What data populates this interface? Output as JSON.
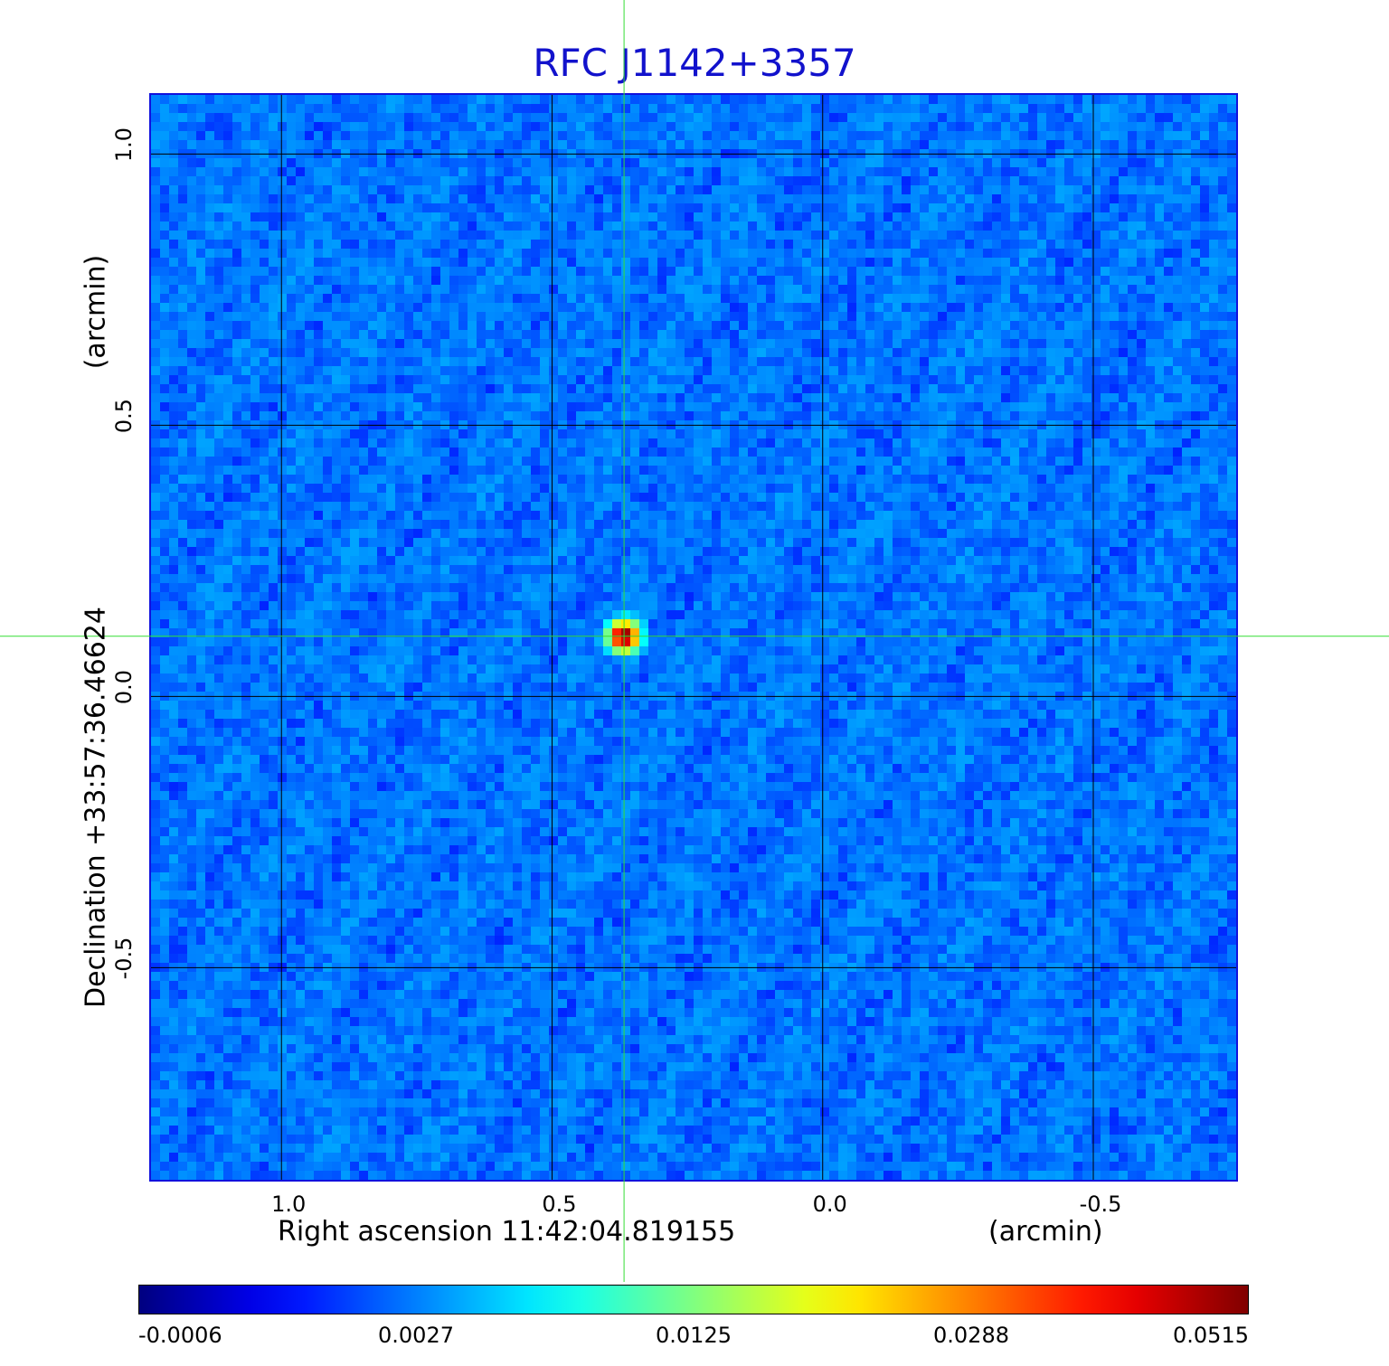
{
  "chart_data": {
    "type": "heatmap",
    "title": "RFC J1142+3357",
    "xlabel": "Right ascension  11:42:04.819155",
    "xlabel_unit": "(arcmin)",
    "ylabel": "Declination  +33:57:36.46624",
    "ylabel_unit": "(arcmin)",
    "x_axis_reversed": true,
    "xlim": [
      1.241,
      -0.764
    ],
    "ylim": [
      -0.891,
      1.109
    ],
    "x_ticks": [
      1.0,
      0.5,
      0.0,
      -0.5
    ],
    "x_tick_labels": [
      "1.0",
      "0.5",
      "0.0",
      "-0.5"
    ],
    "y_ticks": [
      -0.5,
      0.0,
      0.5,
      1.0
    ],
    "y_tick_labels": [
      "-0.5",
      "0.0",
      "0.5",
      "1.0"
    ],
    "grid": true,
    "crosshair": {
      "x": 0.367,
      "y": 0.111
    },
    "source_peak": {
      "x": 0.367,
      "y": 0.111,
      "value": 0.0515
    },
    "colormap": "jet",
    "color_range": [
      -0.0006,
      0.0515
    ],
    "colorbar_ticks": [
      -0.0006,
      0.0027,
      0.0125,
      0.0288,
      0.0515
    ],
    "colorbar_tick_labels": [
      "-0.0006",
      "0.0027",
      "0.0125",
      "0.0288",
      "0.0515"
    ],
    "colorbar_placement": "bottom"
  },
  "colors": {
    "title": "#1212cc",
    "frame": "#1111dd",
    "grid": "#000000",
    "crosshair": "#33dd33"
  }
}
